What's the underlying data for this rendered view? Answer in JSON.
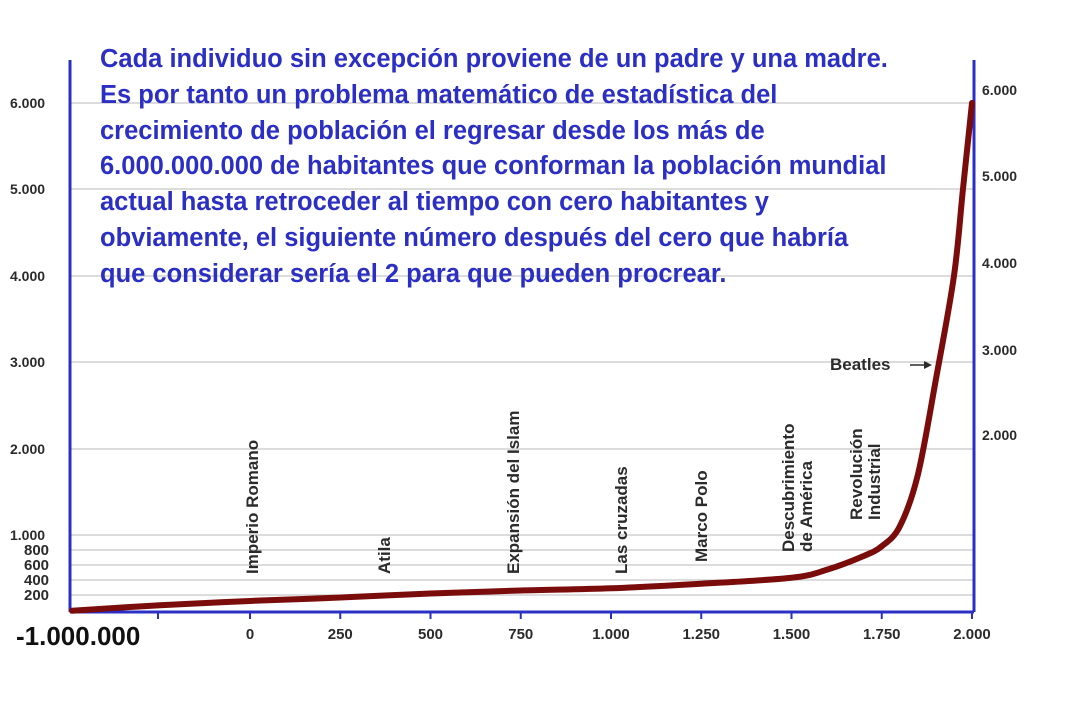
{
  "title_lines": [
    "Cada individuo sin excepción proviene de un padre y una madre.",
    "Es por tanto un problema matemático de estadística del",
    "crecimiento de población el regresar desde los más de",
    "6.000.000.000 de habitantes que conforman la población mundial",
    "actual hasta retroceder al tiempo con cero habitantes y",
    "obviamente, el siguiente número después del cero que habría",
    "que considerar sería el 2 para que pueden procrear."
  ],
  "chart_data": {
    "type": "line",
    "title": "",
    "xlabel": "",
    "ylabel": "",
    "x_origin_label": "-1.000.000",
    "x_ticks": [
      "0",
      "250",
      "500",
      "750",
      "1.000",
      "1.250",
      "1.500",
      "1.750",
      "2.000"
    ],
    "x_tick_values": [
      0,
      250,
      500,
      750,
      1000,
      1250,
      1500,
      1750,
      2000
    ],
    "left_y_ticks": [
      {
        "label": "6.000",
        "value": 6000
      },
      {
        "label": "5.000",
        "value": 5000
      },
      {
        "label": "4.000",
        "value": 4000
      },
      {
        "label": "3.000",
        "value": 3000
      },
      {
        "label": "2.000",
        "value": 2000
      },
      {
        "label": "1.000",
        "value": 1000
      },
      {
        "label": "800",
        "value": 800
      },
      {
        "label": "600",
        "value": 600
      },
      {
        "label": "400",
        "value": 400
      },
      {
        "label": "200",
        "value": 200
      }
    ],
    "right_y_ticks": [
      {
        "label": "6.000",
        "value": 6000
      },
      {
        "label": "5.000",
        "value": 5000
      },
      {
        "label": "4.000",
        "value": 4000
      },
      {
        "label": "3.000",
        "value": 3000
      },
      {
        "label": "2.000",
        "value": 2000
      }
    ],
    "ylim": [
      0,
      6000
    ],
    "grid": true,
    "series": [
      {
        "color": "#7a0c0c",
        "points": [
          {
            "x": "-1.000.000",
            "y": 15
          },
          {
            "x": -250,
            "y": 80
          },
          {
            "x": 0,
            "y": 130
          },
          {
            "x": 250,
            "y": 170
          },
          {
            "x": 500,
            "y": 220
          },
          {
            "x": 750,
            "y": 260
          },
          {
            "x": 1000,
            "y": 290
          },
          {
            "x": 1250,
            "y": 350
          },
          {
            "x": 1500,
            "y": 430
          },
          {
            "x": 1600,
            "y": 540
          },
          {
            "x": 1700,
            "y": 720
          },
          {
            "x": 1750,
            "y": 850
          },
          {
            "x": 1800,
            "y": 1100
          },
          {
            "x": 1850,
            "y": 1700
          },
          {
            "x": 1900,
            "y": 2800
          },
          {
            "x": 1950,
            "y": 4000
          },
          {
            "x": 1975,
            "y": 5000
          },
          {
            "x": 2000,
            "y": 6000
          }
        ]
      }
    ],
    "annotations": [
      {
        "lines": [
          "Imperio Romano"
        ],
        "x": 0
      },
      {
        "lines": [
          "Atila"
        ],
        "x": 450
      },
      {
        "lines": [
          "Expansión del Islam"
        ],
        "x": 650
      },
      {
        "lines": [
          "Las cruzadas"
        ],
        "x": 1000
      },
      {
        "lines": [
          "Marco Polo"
        ],
        "x": 1250
      },
      {
        "lines": [
          "Descubrimiento",
          "de América"
        ],
        "x": 1500
      },
      {
        "lines": [
          "Revolución",
          "Industrial"
        ],
        "x": 1700
      }
    ],
    "arrow_annotation": {
      "label": "Beatles",
      "x": 1965,
      "y": 3000
    }
  },
  "colors": {
    "axis": "#2b2fc4",
    "grid": "#b8b8b8",
    "curve": "#7a0c0c",
    "title": "#2b2fc4",
    "text": "#2b2b2b"
  }
}
